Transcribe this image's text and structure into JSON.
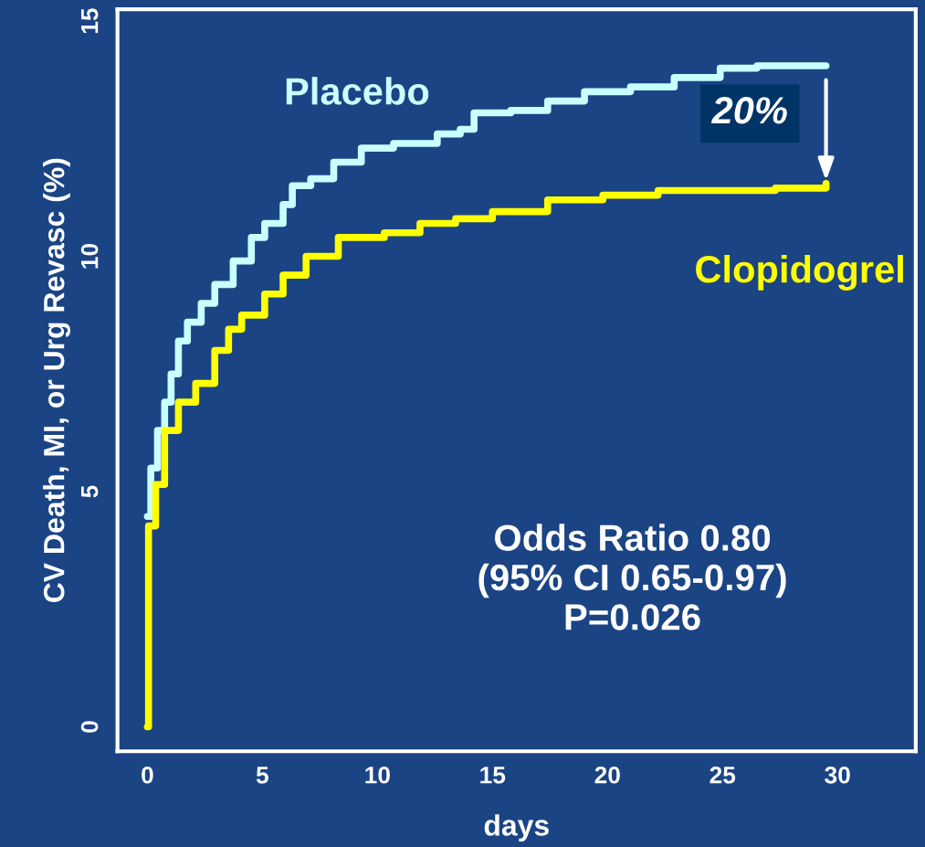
{
  "chart_data": {
    "type": "step",
    "xlabel": "days",
    "ylabel": "CV Death, MI, or Urg Revasc (%)",
    "xlim": [
      -1.3,
      33.4
    ],
    "ylim": [
      -0.52,
      15.25
    ],
    "xticks": [
      0,
      5,
      10,
      15,
      20,
      25,
      30
    ],
    "yticks": [
      0,
      5,
      10,
      15
    ],
    "grid": false,
    "legend": false,
    "series": [
      {
        "name": "Placebo",
        "color": "#c8ffff",
        "x": [
          0,
          0.15,
          0.44,
          0.75,
          1.03,
          1.35,
          1.74,
          2.34,
          2.93,
          3.73,
          4.52,
          5.1,
          5.9,
          6.3,
          7.1,
          8.1,
          9.3,
          10.7,
          12.6,
          13.6,
          14.2,
          15.8,
          17.4,
          19.0,
          21.0,
          22.9,
          24.9,
          26.5,
          29.5
        ],
        "values": [
          4.47,
          5.5,
          6.3,
          6.9,
          7.5,
          8.2,
          8.6,
          9.0,
          9.4,
          9.9,
          10.4,
          10.7,
          11.1,
          11.5,
          11.65,
          12.0,
          12.3,
          12.4,
          12.6,
          12.7,
          13.05,
          13.1,
          13.3,
          13.5,
          13.6,
          13.8,
          14.0,
          14.05,
          14.05
        ]
      },
      {
        "name": "Clopidogrel",
        "color": "#ffff00",
        "x": [
          0,
          0.05,
          0.36,
          0.75,
          1.35,
          2.1,
          2.93,
          3.53,
          4.1,
          5.1,
          5.9,
          6.9,
          8.3,
          10.3,
          11.85,
          13.4,
          15.0,
          17.4,
          19.8,
          22.2,
          27.3,
          29.5
        ],
        "values": [
          0,
          4.27,
          5.15,
          6.3,
          6.9,
          7.3,
          8.0,
          8.45,
          8.75,
          9.2,
          9.6,
          10.0,
          10.4,
          10.5,
          10.7,
          10.8,
          10.95,
          11.2,
          11.3,
          11.4,
          11.45,
          11.55
        ]
      }
    ],
    "annotations": [
      {
        "text": "20%",
        "x": 29.5,
        "y": 11.55
      },
      "Odds Ratio 0.80\n(95% CI 0.65-0.97)\nP=0.026"
    ]
  }
}
